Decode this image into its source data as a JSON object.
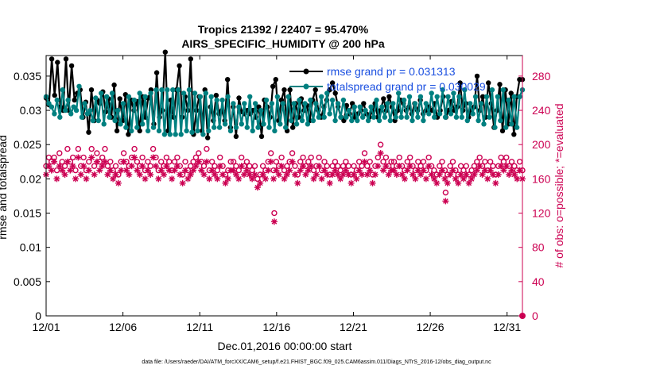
{
  "chart_data": {
    "type": "line",
    "title_line1": "Tropics 21392 / 22407 = 95.470%",
    "title_line2": "AIRS_SPECIFIC_HUMIDITY @ 200 hPa",
    "xlabel": "Dec.01,2016 00:00:00 start",
    "ylabel_left": "rmse and totalspread",
    "ylabel_right": "# of obs: o=possible; *=evaluated",
    "footnote": "data file: /Users/raeder/DAI/ATM_forcXX/CAM6_setup/f.e21.FHIST_BGC.f09_025.CAM6assim.011/Diags_NTrS_2016-12/obs_diag_output.nc",
    "x_tick_labels": [
      "12/01",
      "12/06",
      "12/11",
      "12/16",
      "12/21",
      "12/26",
      "12/31"
    ],
    "x_tick_days": [
      1,
      6,
      11,
      16,
      21,
      26,
      31
    ],
    "xlim": [
      1,
      32
    ],
    "ylim_left": [
      0,
      0.038
    ],
    "y_left_ticks": [
      0,
      0.005,
      0.01,
      0.015,
      0.02,
      0.025,
      0.03,
      0.035
    ],
    "y_left_tick_labels": [
      "0",
      "0.005",
      "0.01",
      "0.015",
      "0.02",
      "0.025",
      "0.03",
      "0.035"
    ],
    "ylim_right": [
      0,
      304
    ],
    "y_right_ticks": [
      0,
      40,
      80,
      120,
      160,
      200,
      240,
      280
    ],
    "y_right_tick_labels": [
      "0",
      "40",
      "80",
      "120",
      "160",
      "200",
      "240",
      "280"
    ],
    "legend": [
      {
        "name": "rmse grand pr = 0.031313",
        "color": "#000000"
      },
      {
        "name": "totalspread grand pr = 0.030029",
        "color": "#008080"
      }
    ],
    "series": [
      {
        "name": "rmse",
        "axis": "left",
        "color": "#000000",
        "values": [
          0.0318,
          0.0308,
          0.0375,
          0.0322,
          0.037,
          0.0305,
          0.03,
          0.0375,
          0.03,
          0.0365,
          0.0315,
          0.0325,
          0.033,
          0.029,
          0.0312,
          0.0268,
          0.033,
          0.0285,
          0.0315,
          0.031,
          0.0327,
          0.0298,
          0.0317,
          0.029,
          0.0337,
          0.027,
          0.0317,
          0.0285,
          0.0323,
          0.0265,
          0.0315,
          0.03,
          0.0313,
          0.027,
          0.032,
          0.029,
          0.0318,
          0.033,
          0.028,
          0.0355,
          0.029,
          0.03,
          0.0385,
          0.027,
          0.0315,
          0.029,
          0.033,
          0.0365,
          0.029,
          0.032,
          0.03,
          0.0375,
          0.0265,
          0.03,
          0.032,
          0.027,
          0.033,
          0.026,
          0.0305,
          0.0285,
          0.0322,
          0.0295,
          0.03,
          0.0285,
          0.0345,
          0.0275,
          0.0305,
          0.0262,
          0.0318,
          0.0298,
          0.0295,
          0.03,
          0.0295,
          0.03,
          0.029,
          0.0305,
          0.0262,
          0.0315,
          0.0305,
          0.029,
          0.0335,
          0.0345,
          0.0285,
          0.0315,
          0.033,
          0.027,
          0.033,
          0.0275,
          0.031,
          0.029,
          0.0317,
          0.03,
          0.0307,
          0.0285,
          0.0315,
          0.033,
          0.03,
          0.029,
          0.0305,
          0.0315,
          0.033,
          0.034,
          0.0325,
          0.0305,
          0.029,
          0.0285,
          0.0307,
          0.0295,
          0.031,
          0.029,
          0.0295,
          0.03,
          0.031,
          0.0295,
          0.029,
          0.0298,
          0.031,
          0.029,
          0.03,
          0.0317,
          0.03,
          0.032,
          0.0305,
          0.0285,
          0.03,
          0.0315,
          0.031,
          0.03,
          0.0305,
          0.0295,
          0.031,
          0.03,
          0.0315,
          0.0295,
          0.03,
          0.0305,
          0.03,
          0.031,
          0.029,
          0.03,
          0.032,
          0.029,
          0.03,
          0.0313,
          0.03,
          0.0305,
          0.034,
          0.03,
          0.031,
          0.029,
          0.03,
          0.0305,
          0.035,
          0.03,
          0.032,
          0.029,
          0.034,
          0.031,
          0.0275,
          0.03,
          0.0338,
          0.027,
          0.033,
          0.028,
          0.0325,
          0.0265,
          0.032,
          0.0345,
          0.0345
        ]
      },
      {
        "name": "totalspread",
        "axis": "left",
        "color": "#008080",
        "values": [
          0.032,
          0.031,
          0.0305,
          0.0295,
          0.0315,
          0.029,
          0.033,
          0.03,
          0.0315,
          0.0295,
          0.0305,
          0.03,
          0.0335,
          0.029,
          0.031,
          0.0295,
          0.03,
          0.0285,
          0.0318,
          0.0285,
          0.0325,
          0.028,
          0.032,
          0.029,
          0.0325,
          0.0285,
          0.03,
          0.028,
          0.031,
          0.0275,
          0.032,
          0.027,
          0.0315,
          0.0275,
          0.0325,
          0.028,
          0.032,
          0.027,
          0.0325,
          0.0275,
          0.033,
          0.027,
          0.033,
          0.0265,
          0.033,
          0.0265,
          0.033,
          0.0265,
          0.033,
          0.0265,
          0.0325,
          0.027,
          0.033,
          0.0268,
          0.0325,
          0.027,
          0.032,
          0.0265,
          0.0325,
          0.027,
          0.032,
          0.0275,
          0.0315,
          0.0275,
          0.0315,
          0.028,
          0.032,
          0.027,
          0.031,
          0.0275,
          0.0305,
          0.028,
          0.031,
          0.0275,
          0.032,
          0.027,
          0.031,
          0.0275,
          0.03,
          0.028,
          0.0315,
          0.0275,
          0.031,
          0.027,
          0.032,
          0.028,
          0.031,
          0.0275,
          0.032,
          0.0285,
          0.031,
          0.028,
          0.0315,
          0.0285,
          0.031,
          0.028,
          0.0315,
          0.0285,
          0.031,
          0.029,
          0.032,
          0.029,
          0.0325,
          0.0295,
          0.0315,
          0.0285,
          0.031,
          0.029,
          0.0315,
          0.029,
          0.03,
          0.0285,
          0.0305,
          0.0285,
          0.0305,
          0.029,
          0.03,
          0.0285,
          0.0305,
          0.029,
          0.0315,
          0.0285,
          0.0305,
          0.029,
          0.031,
          0.0285,
          0.031,
          0.029,
          0.0325,
          0.029,
          0.0315,
          0.029,
          0.032,
          0.0285,
          0.031,
          0.029,
          0.032,
          0.0285,
          0.031,
          0.0295,
          0.0325,
          0.029,
          0.032,
          0.0295,
          0.033,
          0.029,
          0.032,
          0.0295,
          0.0325,
          0.029,
          0.032,
          0.029,
          0.033,
          0.0285,
          0.031,
          0.0295,
          0.032,
          0.0285,
          0.031,
          0.028,
          0.032,
          0.029,
          0.033,
          0.0275,
          0.032,
          0.0285,
          0.033,
          0.0275,
          0.0315,
          0.028,
          0.032,
          0.0275,
          0.032,
          0.033
        ]
      },
      {
        "name": "nposs",
        "axis": "right",
        "color": "#cc0052",
        "marker": "o",
        "values": [
          175,
          185,
          180,
          185,
          170,
          190,
          180,
          175,
          195,
          180,
          185,
          170,
          195,
          175,
          185,
          170,
          180,
          195,
          175,
          190,
          180,
          185,
          195,
          175,
          180,
          170,
          175,
          165,
          180,
          190,
          180,
          175,
          185,
          195,
          180,
          175,
          185,
          170,
          180,
          175,
          195,
          185,
          170,
          180,
          175,
          185,
          180,
          170,
          180,
          185,
          175,
          165,
          180,
          170,
          175,
          180,
          185,
          190,
          180,
          175,
          195,
          170,
          180,
          175,
          170,
          185,
          175,
          165,
          170,
          180,
          180,
          175,
          170,
          185,
          175,
          180,
          175,
          170,
          175,
          160,
          165,
          175,
          170,
          180,
          190,
          170,
          180,
          175,
          185,
          170,
          175,
          180,
          190,
          175,
          165,
          180,
          185,
          175,
          180,
          185,
          170,
          175,
          185,
          170,
          180,
          175,
          165,
          175,
          180,
          175,
          170,
          175,
          180,
          175,
          165,
          175,
          170,
          180,
          175,
          190,
          175,
          180,
          165,
          175,
          185,
          200,
          180,
          185,
          175,
          180,
          180,
          175,
          185,
          175,
          170,
          180,
          185,
          175,
          170,
          180,
          175,
          180,
          170,
          185,
          175,
          170,
          165,
          175,
          180,
          170,
          165,
          175,
          180,
          170,
          165,
          175,
          170,
          175,
          165,
          170,
          175,
          180,
          185,
          175,
          180,
          170,
          180,
          175,
          165,
          175,
          185,
          180,
          185,
          175,
          180,
          175,
          170,
          180,
          170
        ]
      },
      {
        "name": "nused",
        "axis": "right",
        "color": "#cc0052",
        "marker": "*",
        "values": [
          165,
          175,
          170,
          180,
          160,
          175,
          170,
          165,
          180,
          170,
          175,
          160,
          185,
          165,
          175,
          160,
          170,
          185,
          165,
          180,
          170,
          175,
          180,
          165,
          170,
          160,
          165,
          155,
          170,
          180,
          170,
          165,
          175,
          185,
          170,
          165,
          175,
          160,
          170,
          165,
          185,
          175,
          160,
          170,
          165,
          175,
          170,
          160,
          170,
          175,
          165,
          155,
          170,
          160,
          165,
          170,
          175,
          180,
          170,
          165,
          180,
          160,
          170,
          165,
          160,
          175,
          165,
          155,
          160,
          170,
          170,
          165,
          160,
          175,
          165,
          170,
          165,
          160,
          165,
          150,
          155,
          165,
          160,
          170,
          180,
          160,
          170,
          165,
          175,
          160,
          165,
          170,
          180,
          165,
          155,
          170,
          175,
          165,
          170,
          175,
          160,
          165,
          175,
          160,
          170,
          165,
          155,
          165,
          170,
          165,
          160,
          165,
          170,
          165,
          155,
          165,
          160,
          170,
          165,
          180,
          165,
          170,
          155,
          165,
          175,
          190,
          170,
          175,
          165,
          170,
          170,
          165,
          175,
          165,
          160,
          170,
          175,
          165,
          160,
          170,
          165,
          170,
          160,
          175,
          165,
          160,
          155,
          165,
          170,
          160,
          155,
          165,
          170,
          160,
          155,
          165,
          160,
          165,
          155,
          160,
          165,
          170,
          175,
          165,
          170,
          160,
          170,
          165,
          155,
          165,
          175,
          170,
          175,
          165,
          170,
          165,
          160,
          170,
          160
        ]
      }
    ],
    "annotations": [
      {
        "day": 15.85,
        "nposs": 120,
        "nused": 110
      },
      {
        "day": 27.0,
        "nposs": 144,
        "nused": 134
      }
    ],
    "endpoint": {
      "day": 32,
      "value": 0
    }
  }
}
